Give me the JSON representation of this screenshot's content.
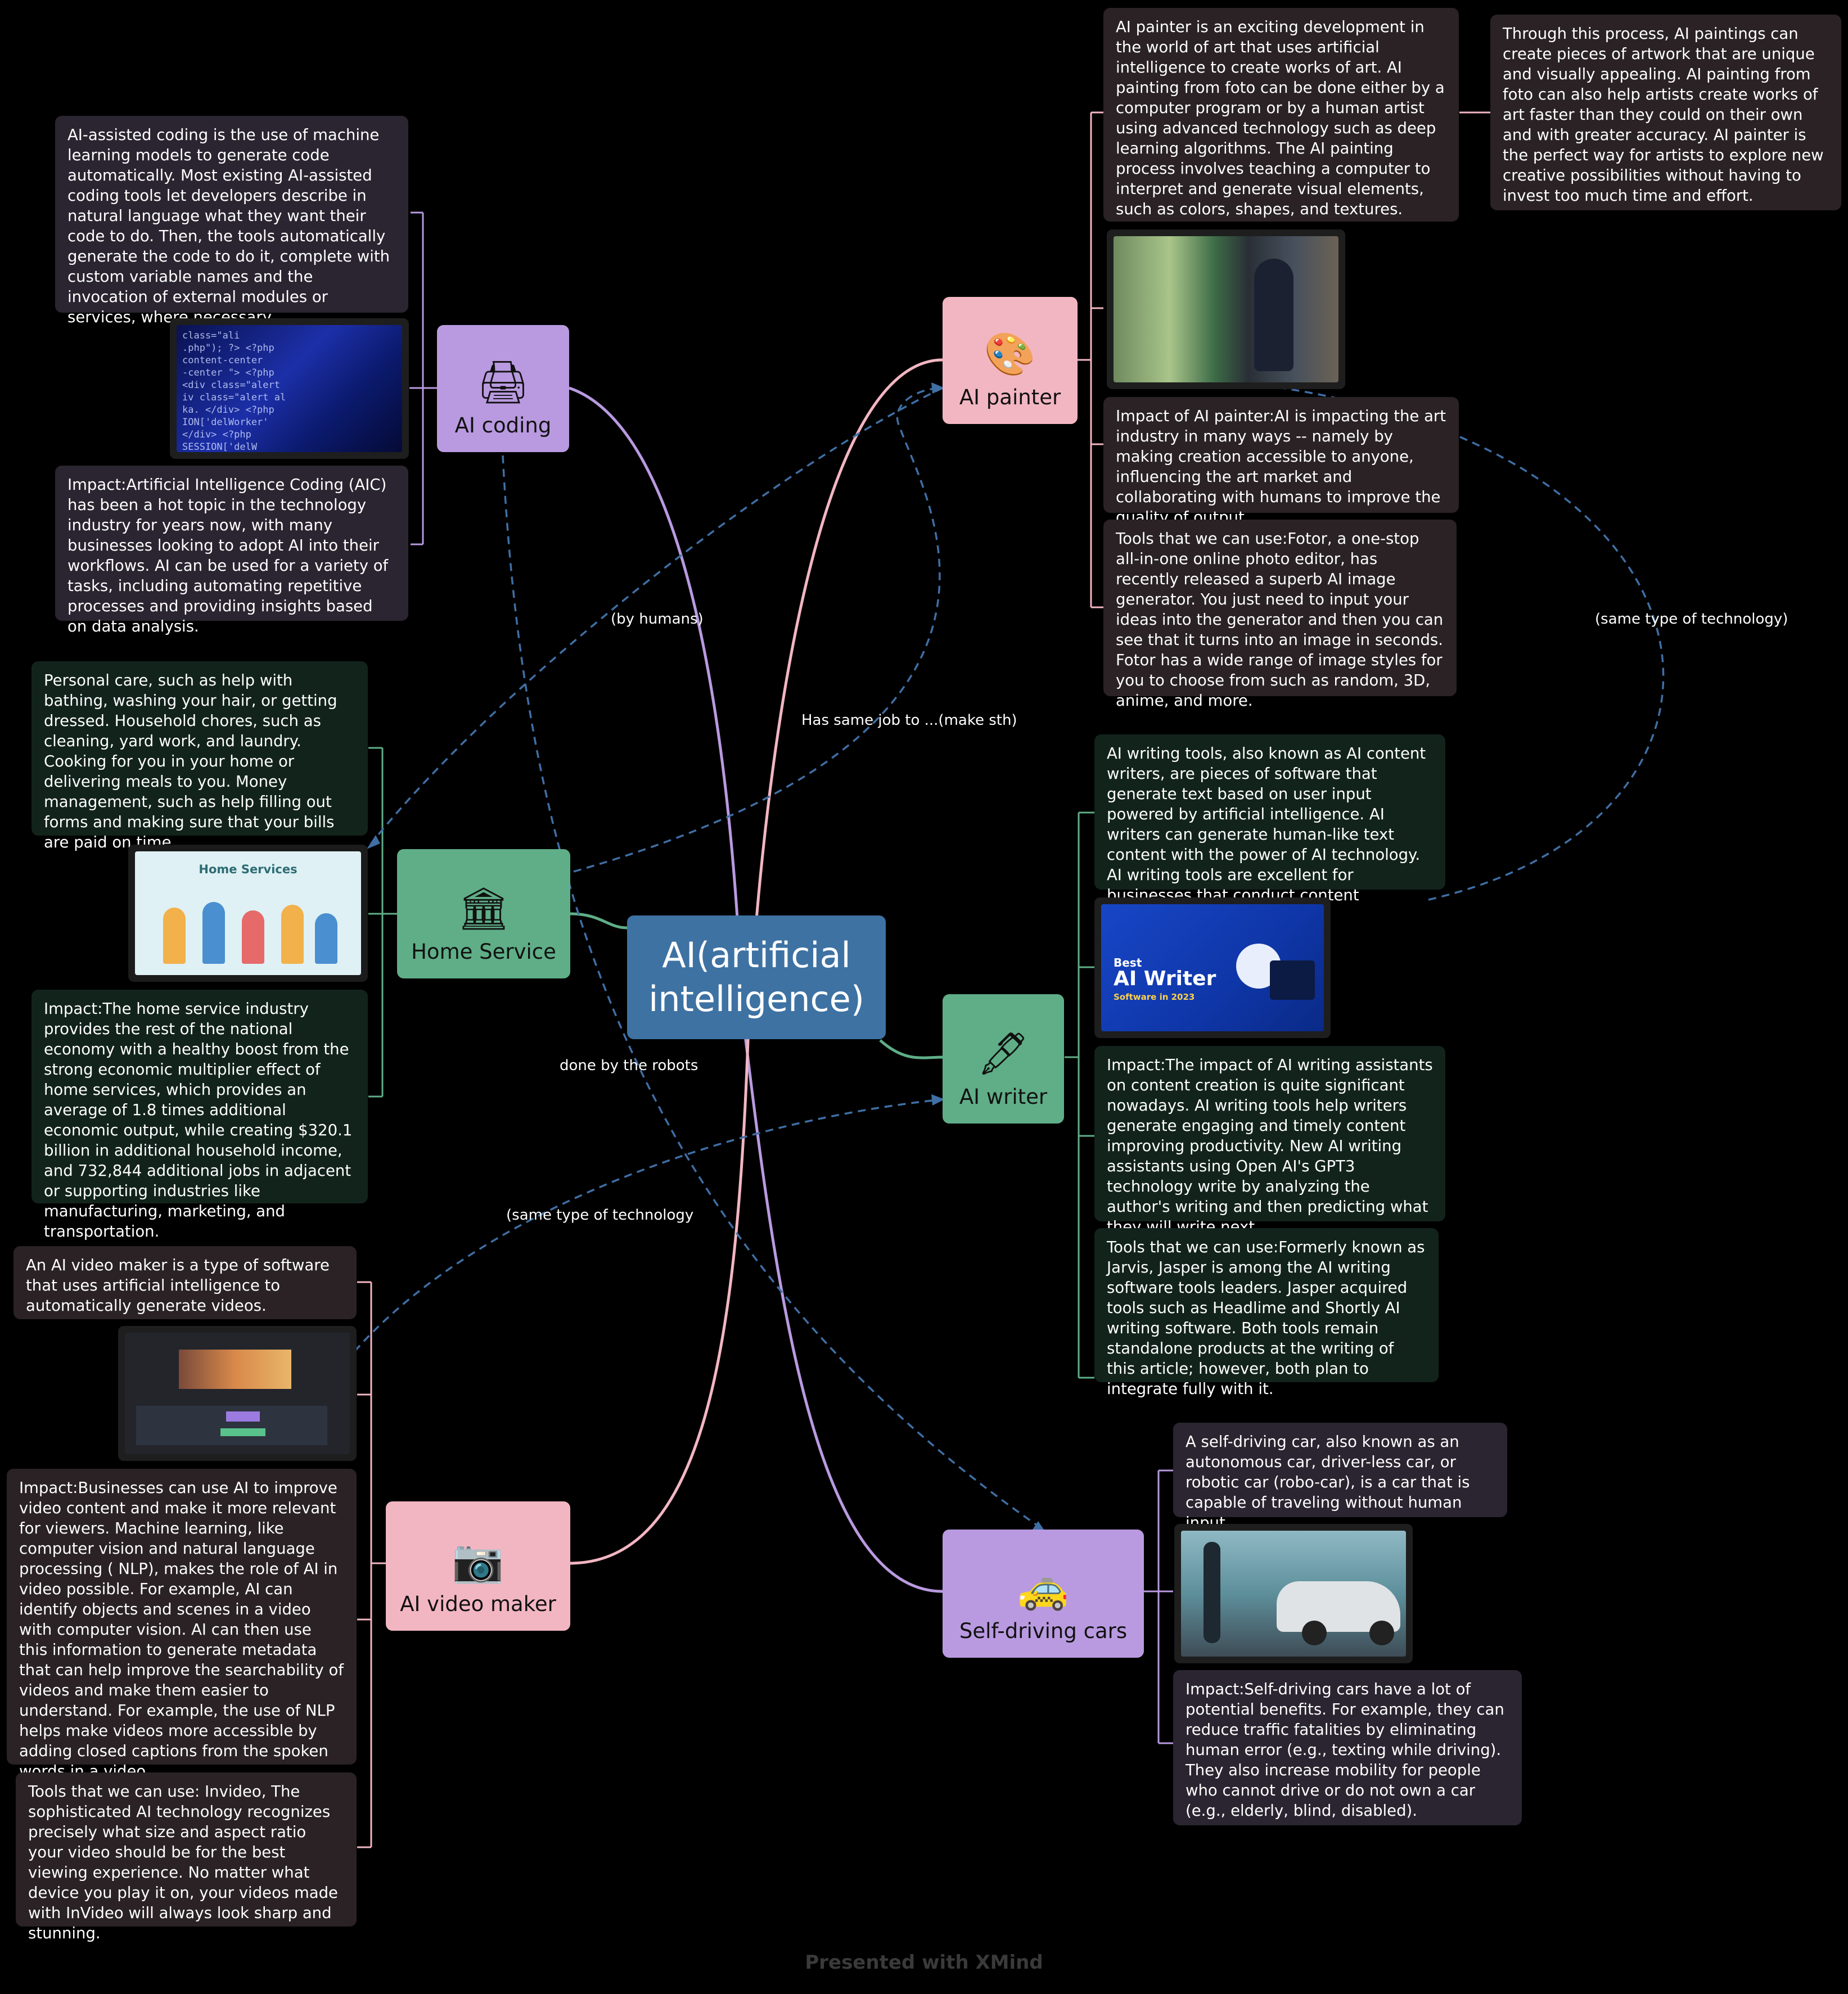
{
  "center": {
    "label_line1": "AI(artificial",
    "label_line2": "intelligence)"
  },
  "topics": {
    "ai_coding": {
      "label": "AI coding",
      "icon": "printer-icon"
    },
    "ai_painter": {
      "label": "AI painter",
      "icon": "palette-icon"
    },
    "home_service": {
      "label": "Home Service",
      "icon": "bank-building-icon"
    },
    "ai_writer": {
      "label": "AI writer",
      "icon": "fountain-pen-icon"
    },
    "ai_video_maker": {
      "label": "AI video maker",
      "icon": "camera-icon"
    },
    "self_driving": {
      "label": "Self-driving cars",
      "icon": "taxi-icon"
    }
  },
  "notes": {
    "coding_desc": "AI-assisted coding is the use of machine learning models to generate code automatically. Most existing AI-assisted coding tools let developers describe in natural language what they want their code to do. Then, the tools automatically generate the code to do it, complete with custom variable names and the invocation of external modules or services, where necessary.",
    "coding_impact": "Impact:Artificial Intelligence Coding (AIC) has been a hot topic in the technology industry for years now, with many businesses looking to adopt AI into their workflows. AI can be used for a variety of tasks, including automating repetitive processes and providing insights based on data analysis.",
    "painter_desc": "AI painter is an exciting development in the world of art that uses artificial intelligence to create works of art. AI painting from foto can be done either by a computer program or by a human artist using advanced technology such as deep learning algorithms. The AI painting process involves teaching a computer to interpret and generate visual elements, such as colors, shapes, and textures.",
    "painter_sub": "Through this process, AI paintings can create pieces of artwork that are unique and visually appealing. AI painting from foto can also help artists create works of art faster than they could on their own and with greater accuracy. AI painter is the perfect way for artists to explore new creative possibilities without having to invest too much time and effort.",
    "painter_impact": "Impact of AI painter:AI is impacting the art industry in many ways -- namely by making creation accessible to anyone, influencing the art market and collaborating with humans to improve the quality of output.",
    "painter_tools": "Tools that we can use:Fotor, a one-stop all-in-one online photo editor, has recently released a superb AI image generator. You just need to input your ideas into the generator and then you can see that it turns into an image in seconds. Fotor has a wide range of image styles for you to choose from such as random, 3D, anime, and more.",
    "home_desc": "Personal care, such as help with bathing, washing your hair, or getting dressed. Household chores, such as cleaning, yard work, and laundry. Cooking for you in your home or delivering meals to you. Money management, such as help filling out forms and making sure that your bills are paid on time.",
    "home_impact": "Impact:The home service industry provides the rest of the national economy with a healthy boost from the strong economic multiplier effect of home services, which provides an average of 1.8 times additional economic output, while creating $320.1 billion in additional household income, and 732,844 additional jobs in adjacent or supporting industries like manufacturing, marketing, and transportation.",
    "writer_desc": "AI writing tools, also known as AI content writers, are pieces of software that generate text based on user input powered by artificial intelligence. AI writers can generate human-like text content with the power of AI technology. AI writing tools are excellent for businesses that conduct content marketing.",
    "writer_impact": "Impact:The impact of AI writing assistants on content creation is quite significant nowadays. AI writing tools help writers generate engaging and timely content improving productivity. New AI writing assistants using Open AI's GPT3 technology write by analyzing the author's writing and then predicting what they will write next.",
    "writer_tools": "Tools that we can use:Formerly known as Jarvis, Jasper is among the AI writing software tools leaders. Jasper acquired tools such as Headlime and Shortly AI writing software. Both tools remain standalone products at the writing of this article; however, both plan to integrate fully with it.",
    "video_desc": "An AI video maker is a type of software that uses artificial intelligence to automatically generate videos.",
    "video_impact": "Impact:Businesses can use AI to improve video content and make it more relevant for viewers. Machine learning, like computer vision and natural language processing ( NLP), makes the role of AI in video possible. For example, AI can identify objects and scenes in a video with computer vision.   AI can then use this information to generate metadata that can help improve the searchability of videos and make them easier to understand. For example, the use of NLP helps make videos more accessible by adding closed captions from the spoken words in a video.",
    "video_tools": "Tools that we can use: Invideo, The sophisticated AI technology recognizes precisely what size and aspect ratio your video should be for the best viewing experience. No matter what device you play it on, your videos made with InVideo will always look sharp and stunning.",
    "car_desc": "A self-driving car, also known as an autonomous car, driver-less car, or robotic car (robo-car), is a car that is capable of traveling without human input.",
    "car_impact": "Impact:Self-driving cars have a lot of potential benefits. For example, they can reduce traffic fatalities by eliminating human error (e.g., texting while driving). They also increase mobility for people who cannot drive or do not own a car (e.g., elderly, blind, disabled)."
  },
  "images": {
    "home_banner_title": "Home Services",
    "writer_banner_small": "Best",
    "writer_banner_big": "AI Writer",
    "writer_banner_sub": "Software in 2023"
  },
  "relationships": {
    "by_humans": "(by humans)",
    "same_job": "Has same job to ...(make sth)",
    "same_tech_right": "(same type of technology)",
    "done_by_robots": "done by the robots",
    "same_tech_left": "(same type of technology"
  },
  "footer": "Presented with XMind",
  "colors": {
    "background": "#000000",
    "center": "#3e72a3",
    "pink": "#f2b6c2",
    "purple": "#b99ae0",
    "green": "#5fae87",
    "dashed": "#3f6fa5"
  }
}
